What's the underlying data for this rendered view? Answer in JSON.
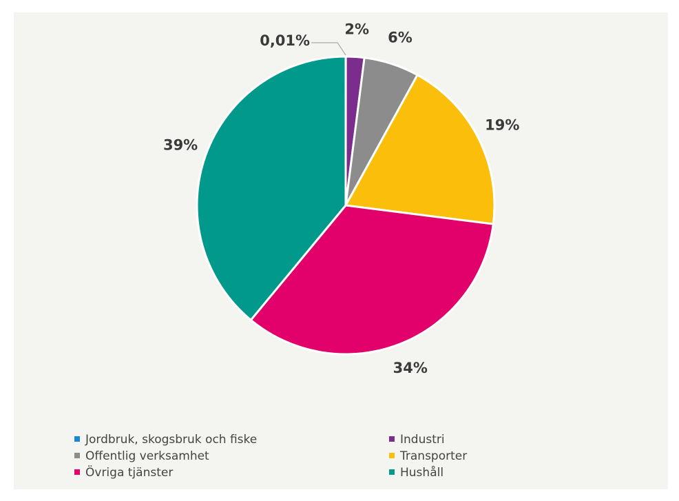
{
  "chart_data": {
    "type": "pie",
    "categories": [
      "Jordbruk, skogsbruk och fiske",
      "Industri",
      "Offentlig verksamhet",
      "Transporter",
      "Övriga tjänster",
      "Hushåll"
    ],
    "values": [
      0.01,
      2,
      6,
      19,
      34,
      39
    ],
    "value_labels": [
      "0,01%",
      "2%",
      "6%",
      "19%",
      "34%",
      "39%"
    ],
    "colors": [
      "#1b87d0",
      "#7a2d8c",
      "#8c8c8c",
      "#fbbf0b",
      "#e2006a",
      "#00998c"
    ]
  }
}
